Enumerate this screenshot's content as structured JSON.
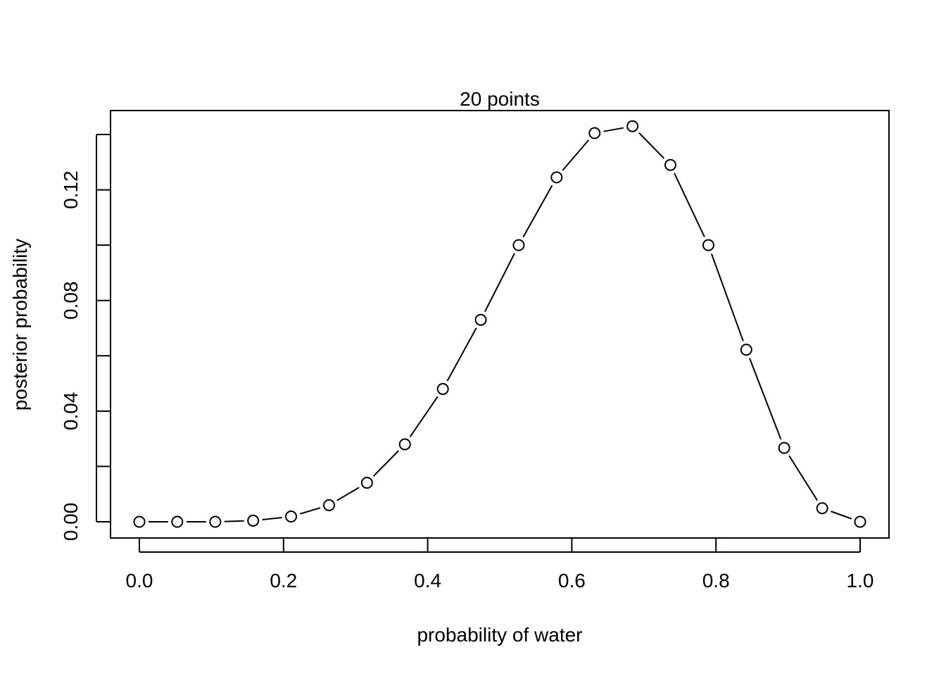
{
  "chart_data": {
    "type": "line",
    "title": "20 points",
    "xlabel": "probability of water",
    "ylabel": "posterior probability",
    "xlim": [
      0,
      1
    ],
    "ylim": [
      0,
      0.14
    ],
    "x_ticks": [
      0.0,
      0.2,
      0.4,
      0.6,
      0.8,
      1.0
    ],
    "x_tick_labels": [
      "0.0",
      "0.2",
      "0.4",
      "0.6",
      "0.8",
      "1.0"
    ],
    "y_ticks": [
      0.0,
      0.02,
      0.04,
      0.06,
      0.08,
      0.1,
      0.12,
      0.14
    ],
    "y_tick_labels": [
      "0.00",
      "",
      "0.04",
      "",
      "0.08",
      "",
      "0.12",
      ""
    ],
    "series": [
      {
        "name": "posterior",
        "marker": "open-circle",
        "line": "segments",
        "x": [
          0.0,
          0.0526,
          0.1053,
          0.1579,
          0.2105,
          0.2632,
          0.3158,
          0.3684,
          0.4211,
          0.4737,
          0.5263,
          0.5789,
          0.6316,
          0.6842,
          0.7368,
          0.7895,
          0.8421,
          0.8947,
          0.9474,
          1.0
        ],
        "y": [
          0.0,
          0.0,
          0.0,
          0.0004,
          0.0019,
          0.006,
          0.0141,
          0.028,
          0.048,
          0.073,
          0.1,
          0.1245,
          0.1405,
          0.143,
          0.129,
          0.1,
          0.0622,
          0.0267,
          0.0049,
          0.0
        ]
      }
    ]
  }
}
